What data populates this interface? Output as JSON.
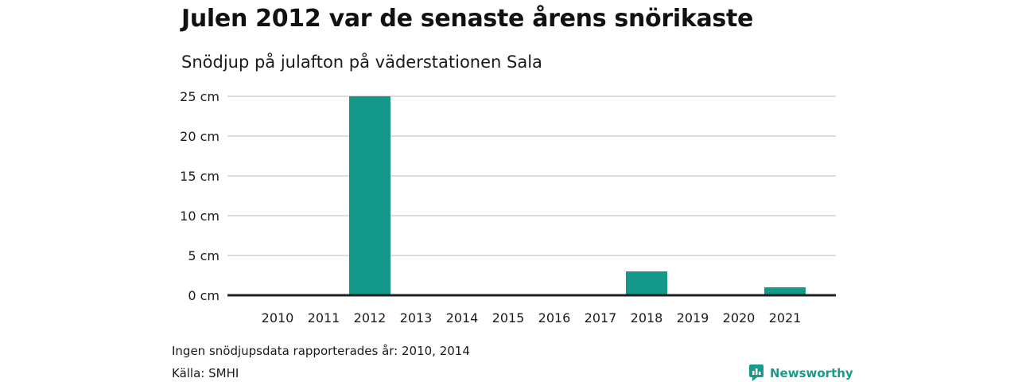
{
  "title": "Julen 2012 var de senaste årens snörikaste",
  "subtitle": "Snödjup på julafton på väderstationen Sala",
  "note": "Ingen snödjupsdata rapporterades år: 2010, 2014",
  "source": "Källa: SMHI",
  "logo": {
    "icon": "newsworthy-logo-icon",
    "text": "Newsworthy"
  },
  "colors": {
    "bar": "#14988a",
    "grid": "#dddddd",
    "baseline": "#222222",
    "brand": "#1a9a8a"
  },
  "chart_data": {
    "type": "bar",
    "categories": [
      "2010",
      "2011",
      "2012",
      "2013",
      "2014",
      "2015",
      "2016",
      "2017",
      "2018",
      "2019",
      "2020",
      "2021"
    ],
    "values": [
      null,
      0,
      25,
      0,
      null,
      0,
      0,
      0,
      3,
      0,
      0,
      1
    ],
    "ylim": [
      0,
      25
    ],
    "yticks": [
      0,
      5,
      10,
      15,
      20,
      25
    ],
    "ytick_labels": [
      "0 cm",
      "5 cm",
      "10 cm",
      "15 cm",
      "20 cm",
      "25 cm"
    ],
    "grid": true
  }
}
